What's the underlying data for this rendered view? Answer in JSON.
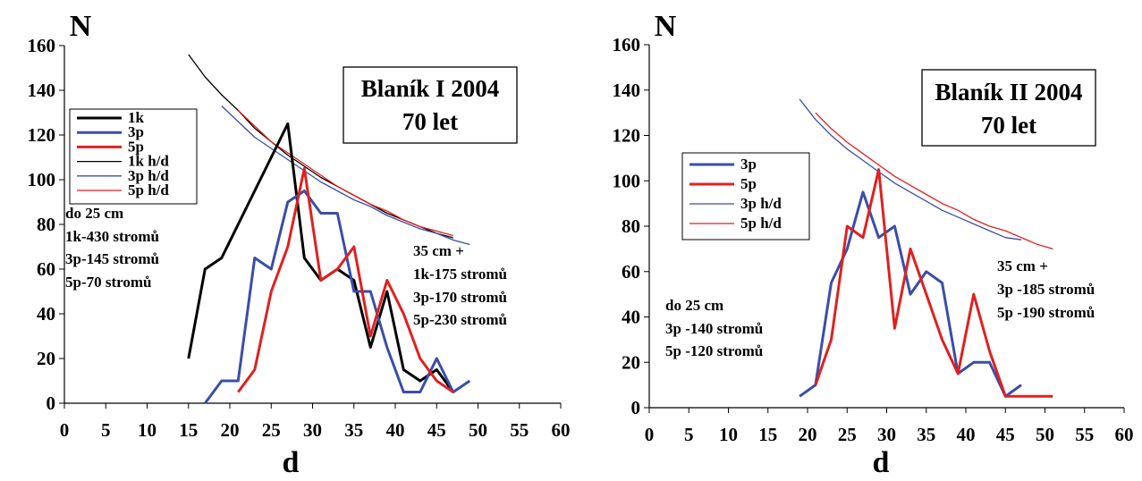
{
  "chart_data": [
    {
      "type": "line",
      "title": "Blaník I 2004",
      "subtitle": "70 let",
      "xlabel": "d",
      "ylabel": "N",
      "xlim": [
        0,
        60
      ],
      "ylim": [
        0,
        160
      ],
      "xticks": [
        0,
        5,
        10,
        15,
        20,
        25,
        30,
        35,
        40,
        45,
        50,
        55,
        60
      ],
      "yticks": [
        0,
        20,
        40,
        60,
        80,
        100,
        120,
        140,
        160
      ],
      "grid": false,
      "legend_position": "left",
      "series": [
        {
          "name": "1k",
          "color": "#000000",
          "width": 3,
          "x": [
            15,
            17,
            19,
            21,
            23,
            25,
            27,
            29,
            31,
            33,
            35,
            37,
            39,
            41,
            43,
            45,
            47
          ],
          "y": [
            20,
            60,
            65,
            80,
            95,
            110,
            125,
            65,
            55,
            60,
            55,
            25,
            50,
            15,
            10,
            15,
            5
          ]
        },
        {
          "name": "3p",
          "color": "#3a4ea8",
          "width": 3,
          "x": [
            17,
            19,
            21,
            23,
            25,
            27,
            29,
            31,
            33,
            35,
            37,
            39,
            41,
            43,
            45,
            47,
            49
          ],
          "y": [
            0,
            10,
            10,
            65,
            60,
            90,
            95,
            85,
            85,
            50,
            50,
            25,
            5,
            5,
            20,
            5,
            10
          ]
        },
        {
          "name": "5p",
          "color": "#e02020",
          "width": 3,
          "x": [
            21,
            23,
            25,
            27,
            29,
            31,
            33,
            35,
            37,
            39,
            41,
            43,
            45,
            47
          ],
          "y": [
            5,
            15,
            50,
            70,
            105,
            55,
            60,
            70,
            30,
            55,
            40,
            20,
            10,
            5
          ]
        },
        {
          "name": "1k h/d",
          "color": "#000000",
          "width": 1.3,
          "x": [
            15,
            17,
            19,
            21,
            23,
            25,
            27,
            29,
            31,
            33,
            35,
            37,
            39,
            41,
            43,
            45,
            47
          ],
          "y": [
            156,
            146,
            138,
            131,
            123,
            117,
            111,
            106,
            101,
            97,
            93,
            89,
            85,
            82,
            79,
            76,
            74
          ]
        },
        {
          "name": "3p h/d",
          "color": "#3a4ea8",
          "width": 1.3,
          "x": [
            19,
            21,
            23,
            25,
            27,
            29,
            31,
            33,
            35,
            37,
            39,
            41,
            43,
            45,
            47,
            49
          ],
          "y": [
            133,
            126,
            119,
            114,
            109,
            104,
            99,
            95,
            91,
            88,
            84,
            81,
            78,
            76,
            73,
            71
          ]
        },
        {
          "name": "5p h/d",
          "color": "#e02020",
          "width": 1.3,
          "x": [
            21,
            23,
            25,
            27,
            29,
            31,
            33,
            35,
            37,
            39,
            41,
            43,
            45,
            47
          ],
          "y": [
            131,
            124,
            117,
            112,
            107,
            102,
            97,
            93,
            89,
            86,
            82,
            79,
            77,
            75
          ]
        }
      ],
      "annotations": [
        {
          "lines": [
            "do 25 cm",
            "1k-430 stromů",
            "3p-145 stromů",
            "5p-70 stromů"
          ]
        },
        {
          "lines": [
            "35 cm +",
            "1k-175  stromů",
            "3p-170 stromů",
            "5p-230 stromů"
          ]
        }
      ]
    },
    {
      "type": "line",
      "title": "Blaník II 2004",
      "subtitle": "70 let",
      "xlabel": "d",
      "ylabel": "N",
      "xlim": [
        0,
        60
      ],
      "ylim": [
        0,
        160
      ],
      "xticks": [
        0,
        5,
        10,
        15,
        20,
        25,
        30,
        35,
        40,
        45,
        50,
        55,
        60
      ],
      "yticks": [
        0,
        20,
        40,
        60,
        80,
        100,
        120,
        140,
        160
      ],
      "grid": false,
      "legend_position": "left",
      "series": [
        {
          "name": "3p",
          "color": "#3a4ea8",
          "width": 3,
          "x": [
            19,
            21,
            23,
            25,
            27,
            29,
            31,
            33,
            35,
            37,
            39,
            41,
            43,
            45,
            47
          ],
          "y": [
            5,
            10,
            55,
            70,
            95,
            75,
            80,
            50,
            60,
            55,
            15,
            20,
            20,
            5,
            10
          ]
        },
        {
          "name": "5p",
          "color": "#e02020",
          "width": 3,
          "x": [
            21,
            23,
            25,
            27,
            29,
            31,
            33,
            35,
            37,
            39,
            41,
            43,
            45,
            47,
            49,
            51
          ],
          "y": [
            10,
            30,
            80,
            75,
            105,
            35,
            70,
            50,
            30,
            15,
            50,
            25,
            5,
            5,
            5,
            5
          ]
        },
        {
          "name": "3p h/d",
          "color": "#3a4ea8",
          "width": 1.3,
          "x": [
            19,
            21,
            23,
            25,
            27,
            29,
            31,
            33,
            35,
            37,
            39,
            41,
            43,
            45,
            47
          ],
          "y": [
            136,
            127,
            120,
            114,
            109,
            104,
            99,
            95,
            91,
            87,
            84,
            81,
            78,
            75,
            74
          ]
        },
        {
          "name": "5p h/d",
          "color": "#e02020",
          "width": 1.3,
          "x": [
            21,
            23,
            25,
            27,
            29,
            31,
            33,
            35,
            37,
            39,
            41,
            43,
            45,
            47,
            49,
            51
          ],
          "y": [
            130,
            123,
            117,
            112,
            107,
            102,
            98,
            94,
            90,
            87,
            83,
            80,
            78,
            75,
            72,
            70
          ]
        }
      ],
      "annotations": [
        {
          "lines": [
            "do 25 cm",
            "3p -140 stromů",
            "5p -120 stromů"
          ]
        },
        {
          "lines": [
            "35 cm +",
            "3p -185 stromů",
            "5p -190 stromů"
          ]
        }
      ]
    }
  ]
}
